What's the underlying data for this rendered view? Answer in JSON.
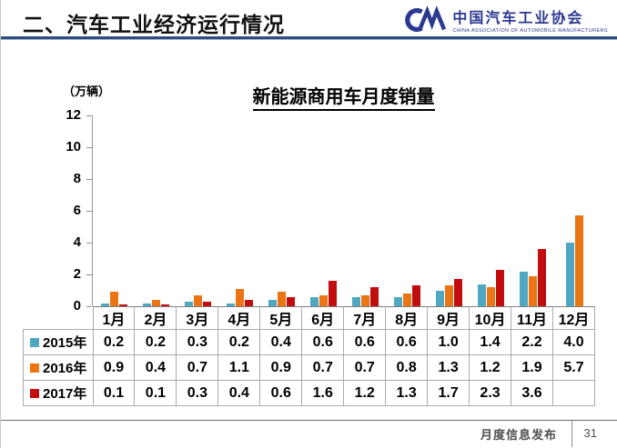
{
  "header": {
    "title": "二、汽车工业经济运行情况",
    "logo": {
      "org_name": "中国汽车工业协会",
      "org_name_en": "CHINA ASSOCIATION OF AUTOMOBILE MANUFACTURERS",
      "logo_color": "#2B3990"
    }
  },
  "chart_data": {
    "type": "bar",
    "title": "新能源商用车月度销量",
    "unit_label": "（万辆）",
    "categories": [
      "1月",
      "2月",
      "3月",
      "4月",
      "5月",
      "6月",
      "7月",
      "8月",
      "9月",
      "10月",
      "11月",
      "12月"
    ],
    "series": [
      {
        "name": "2015年",
        "color": "#4FA8C2",
        "values": [
          0.2,
          0.2,
          0.3,
          0.2,
          0.4,
          0.6,
          0.6,
          0.6,
          1.0,
          1.4,
          2.2,
          4.0
        ]
      },
      {
        "name": "2016年",
        "color": "#EB7414",
        "values": [
          0.9,
          0.4,
          0.7,
          1.1,
          0.9,
          0.7,
          0.7,
          0.8,
          1.3,
          1.2,
          1.9,
          5.7
        ]
      },
      {
        "name": "2017年",
        "color": "#C20D0E",
        "values": [
          0.1,
          0.1,
          0.3,
          0.4,
          0.6,
          1.6,
          1.2,
          1.3,
          1.7,
          2.3,
          3.6,
          null
        ]
      }
    ],
    "ylim": [
      0,
      12
    ],
    "yticks": [
      0,
      2,
      4,
      6,
      8,
      10,
      12
    ],
    "grid": false,
    "legend_position": "table-left-column"
  },
  "footer": {
    "label": "月度信息发布",
    "page_number": "31"
  }
}
